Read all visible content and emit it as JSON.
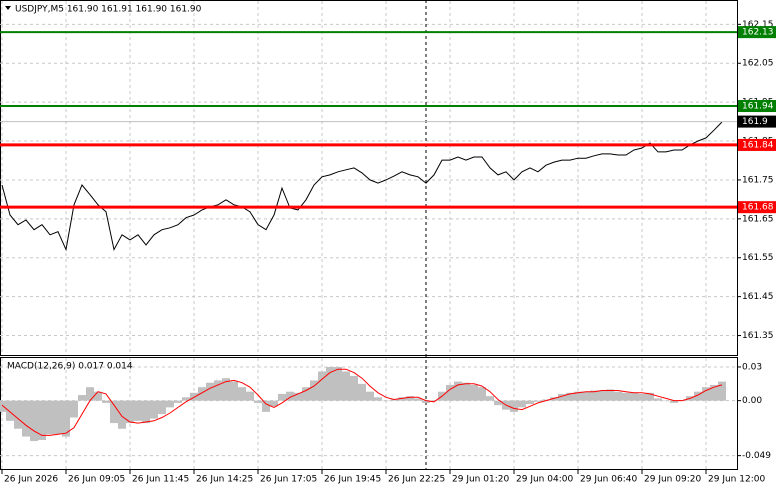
{
  "chart_data": [
    {
      "type": "line",
      "title": "USDJPY,M5  161.90 161.91 161.90 161.90",
      "color": "#000000",
      "x": [
        0,
        4,
        8,
        12,
        16,
        20,
        24,
        28,
        32,
        36,
        40,
        44,
        48,
        52,
        56,
        60,
        64,
        68,
        72,
        76,
        80,
        84,
        88,
        92,
        96,
        100,
        104,
        108,
        112,
        116,
        120,
        124,
        128,
        132,
        136,
        140,
        144,
        148,
        152,
        156,
        160,
        164,
        168,
        172,
        176,
        180,
        184,
        188,
        192,
        196,
        200,
        204,
        208,
        212,
        216,
        220,
        224,
        228,
        232,
        236,
        240,
        244,
        248,
        252,
        256,
        260,
        264,
        268,
        272,
        276,
        280,
        284,
        288,
        292,
        296,
        300,
        304,
        308,
        312,
        316,
        320,
        324,
        328,
        332,
        336,
        340,
        344,
        348,
        352,
        356,
        360
      ],
      "values": [
        161.737,
        161.66,
        161.635,
        161.647,
        161.622,
        161.635,
        161.609,
        161.617,
        161.571,
        161.686,
        161.737,
        161.712,
        161.686,
        161.668,
        161.571,
        161.609,
        161.596,
        161.609,
        161.583,
        161.609,
        161.622,
        161.627,
        161.635,
        161.653,
        161.66,
        161.673,
        161.681,
        161.686,
        161.699,
        161.686,
        161.681,
        161.668,
        161.635,
        161.622,
        161.66,
        161.729,
        161.678,
        161.673,
        161.699,
        161.737,
        161.758,
        161.763,
        161.771,
        161.776,
        161.781,
        161.768,
        161.75,
        161.742,
        161.75,
        161.76,
        161.771,
        161.763,
        161.758,
        161.742,
        161.763,
        161.801,
        161.801,
        161.809,
        161.801,
        161.809,
        161.809,
        161.781,
        161.763,
        161.771,
        161.75,
        161.771,
        161.781,
        161.771,
        161.788,
        161.796,
        161.801,
        161.801,
        161.806,
        161.806,
        161.812,
        161.817,
        161.817,
        161.814,
        161.814,
        161.827,
        161.832,
        161.845,
        161.822,
        161.822,
        161.827,
        161.827,
        161.84,
        161.85,
        161.858,
        161.878,
        161.899
      ],
      "xlim": [
        -1,
        367.5
      ],
      "ylim": [
        161.3,
        162.21
      ],
      "yticks": [
        161.35,
        161.45,
        161.55,
        161.65,
        161.75,
        161.85,
        161.95,
        162.05,
        162.15
      ],
      "grid": true,
      "levels": [
        {
          "value": 162.13,
          "color": "#008000"
        },
        {
          "value": 161.94,
          "color": "#008000"
        },
        {
          "value": 161.84,
          "color": "#ff0000"
        },
        {
          "value": 161.68,
          "color": "#ff0000"
        }
      ],
      "last_price": {
        "value": 161.9,
        "color": "#c0c0c0"
      }
    },
    {
      "type": "macd",
      "title": "MACD(12,26,9) 0.017 0.014",
      "x": [
        0,
        4,
        8,
        12,
        16,
        20,
        24,
        28,
        32,
        36,
        40,
        44,
        48,
        52,
        56,
        60,
        64,
        68,
        72,
        76,
        80,
        84,
        88,
        92,
        96,
        100,
        104,
        108,
        112,
        116,
        120,
        124,
        128,
        132,
        136,
        140,
        144,
        148,
        152,
        156,
        160,
        164,
        168,
        172,
        176,
        180,
        184,
        188,
        192,
        196,
        200,
        204,
        208,
        212,
        216,
        220,
        224,
        228,
        232,
        236,
        240,
        244,
        248,
        252,
        256,
        260,
        264,
        268,
        272,
        276,
        280,
        284,
        288,
        292,
        296,
        300,
        304,
        308,
        312,
        316,
        320,
        324,
        328,
        332,
        336,
        340,
        344,
        348,
        352,
        356,
        360
      ],
      "series": [
        {
          "type": "bar",
          "color": "#c0c0c0",
          "values": [
            -0.01,
            -0.018,
            -0.025,
            -0.032,
            -0.036,
            -0.035,
            -0.03,
            -0.03,
            -0.032,
            -0.015,
            0.005,
            0.012,
            0.008,
            -0.002,
            -0.02,
            -0.025,
            -0.02,
            -0.018,
            -0.02,
            -0.016,
            -0.012,
            -0.006,
            -0.002,
            0.003,
            0.007,
            0.012,
            0.016,
            0.018,
            0.02,
            0.017,
            0.012,
            0.008,
            -0.002,
            -0.01,
            -0.005,
            0.006,
            0.008,
            0.007,
            0.012,
            0.018,
            0.026,
            0.03,
            0.03,
            0.026,
            0.022,
            0.015,
            0.008,
            0.003,
            0.0,
            0.001,
            0.003,
            0.004,
            0.002,
            -0.002,
            0.0,
            0.008,
            0.014,
            0.017,
            0.016,
            0.014,
            0.012,
            0.004,
            -0.004,
            -0.008,
            -0.01,
            -0.006,
            -0.003,
            -0.001,
            0.001,
            0.003,
            0.006,
            0.007,
            0.008,
            0.008,
            0.009,
            0.009,
            0.01,
            0.008,
            0.007,
            0.007,
            0.006,
            0.007,
            0.002,
            0.0,
            -0.002,
            0.0,
            0.004,
            0.008,
            0.012,
            0.014,
            0.017
          ]
        },
        {
          "type": "line",
          "color": "#ff0000",
          "values": [
            -0.004,
            -0.01,
            -0.016,
            -0.022,
            -0.027,
            -0.031,
            -0.031,
            -0.03,
            -0.029,
            -0.024,
            -0.012,
            0.0,
            0.008,
            0.006,
            -0.004,
            -0.014,
            -0.019,
            -0.02,
            -0.019,
            -0.018,
            -0.015,
            -0.011,
            -0.006,
            -0.001,
            0.003,
            0.007,
            0.011,
            0.014,
            0.017,
            0.018,
            0.016,
            0.012,
            0.005,
            -0.003,
            -0.006,
            -0.002,
            0.003,
            0.006,
            0.009,
            0.013,
            0.019,
            0.025,
            0.028,
            0.028,
            0.025,
            0.02,
            0.013,
            0.007,
            0.003,
            0.001,
            0.002,
            0.003,
            0.003,
            0.0,
            -0.001,
            0.004,
            0.01,
            0.014,
            0.015,
            0.015,
            0.013,
            0.008,
            0.001,
            -0.004,
            -0.007,
            -0.008,
            -0.005,
            -0.002,
            0.0,
            0.002,
            0.004,
            0.006,
            0.007,
            0.008,
            0.008,
            0.009,
            0.009,
            0.009,
            0.008,
            0.007,
            0.007,
            0.006,
            0.004,
            0.002,
            0.0,
            0.0,
            0.002,
            0.005,
            0.009,
            0.012,
            0.014
          ]
        }
      ],
      "xlim": [
        -1,
        367.5
      ],
      "ylim": [
        -0.0618,
        0.038
      ],
      "yticks": [
        0.03,
        {
          "value": 0,
          "label": "0.00"
        },
        -0.049
      ],
      "xticks": [
        {
          "value": 0,
          "label": "26 Jun 2026"
        },
        {
          "value": 32,
          "label": "26 Jun 09:05"
        },
        {
          "value": 64,
          "label": "26 Jun 11:45"
        },
        {
          "value": 96,
          "label": "26 Jun 14:25"
        },
        {
          "value": 128,
          "label": "26 Jun 17:05"
        },
        {
          "value": 160,
          "label": "26 Jun 19:45"
        },
        {
          "value": 192,
          "label": "26 Jun 22:25"
        },
        {
          "value": 224,
          "label": "29 Jun 01:20"
        },
        {
          "value": 256,
          "label": "29 Jun 04:00"
        },
        {
          "value": 288,
          "label": "29 Jun 06:40"
        },
        {
          "value": 320,
          "label": "29 Jun 09:20"
        },
        {
          "value": 352,
          "label": "29 Jun 12:00"
        }
      ],
      "grid": true
    }
  ]
}
